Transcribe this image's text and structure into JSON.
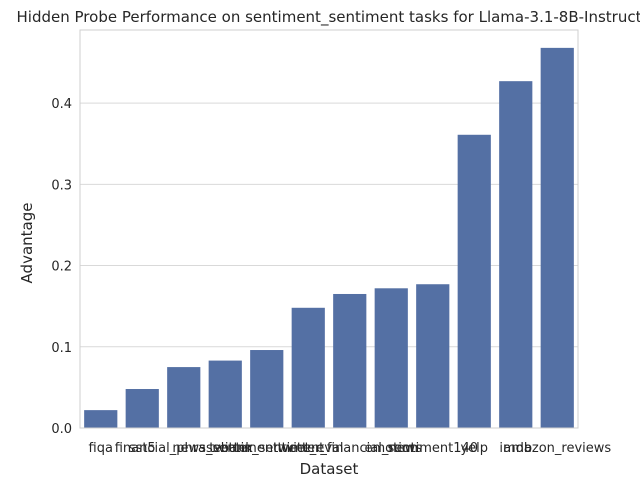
{
  "chart_data": {
    "type": "bar",
    "title": "Hidden Probe Performance on sentiment_sentiment tasks for Llama-3.1-8B-Instruct",
    "xlabel": "Dataset",
    "ylabel": "Advantage",
    "categories": [
      "fiqa",
      "sst5",
      "financial_phrasebank",
      "news_sentiment",
      "twitter_sentiment",
      "tweet_eval",
      "twitter_financial_news",
      "emotion",
      "sentiment140",
      "yelp",
      "imdb",
      "amazon_reviews"
    ],
    "values": [
      0.022,
      0.048,
      0.075,
      0.083,
      0.096,
      0.148,
      0.165,
      0.172,
      0.177,
      0.361,
      0.427,
      0.468
    ],
    "ylim": [
      0,
      0.49
    ],
    "yticks": [
      0.0,
      0.1,
      0.2,
      0.3,
      0.4
    ],
    "ytick_labels": [
      "0.0",
      "0.1",
      "0.2",
      "0.3",
      "0.4"
    ],
    "grid": "horizontal",
    "bar_color": "#5470a4",
    "grid_color": "#d9d9d9",
    "spine_color": "#cfcfcf"
  }
}
